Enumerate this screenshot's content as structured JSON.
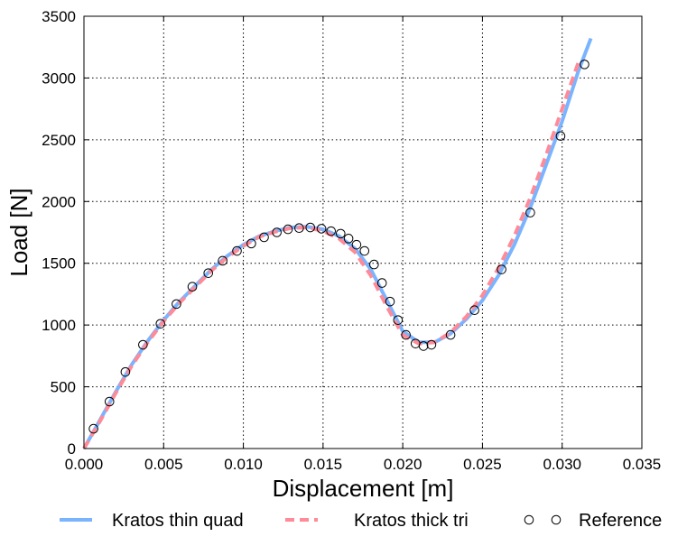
{
  "chart_data": {
    "type": "line",
    "title": "",
    "xlabel": "Displacement [m]",
    "ylabel": "Load [N]",
    "xlim": [
      0,
      0.035
    ],
    "ylim": [
      0,
      3500
    ],
    "grid": true,
    "legend_position": "bottom",
    "x_ticks": [
      0,
      0.005,
      0.01,
      0.015,
      0.02,
      0.025,
      0.03,
      0.035
    ],
    "x_tick_labels": [
      "0.000",
      "0.005",
      "0.010",
      "0.015",
      "0.020",
      "0.025",
      "0.030",
      "0.035"
    ],
    "y_ticks": [
      0,
      500,
      1000,
      1500,
      2000,
      2500,
      3000,
      3500
    ],
    "y_tick_labels": [
      "0",
      "500",
      "1000",
      "1500",
      "2000",
      "2500",
      "3000",
      "3500"
    ],
    "series": [
      {
        "name": "Kratos thin quad",
        "style": "solid",
        "color": "#7ab4ff",
        "x": [
          0,
          0.001,
          0.002,
          0.003,
          0.004,
          0.005,
          0.006,
          0.007,
          0.008,
          0.009,
          0.01,
          0.011,
          0.012,
          0.013,
          0.014,
          0.015,
          0.016,
          0.017,
          0.018,
          0.019,
          0.02,
          0.021,
          0.022,
          0.023,
          0.024,
          0.025,
          0.026,
          0.027,
          0.028,
          0.029,
          0.03,
          0.031,
          0.0318
        ],
        "y": [
          0,
          230,
          460,
          680,
          870,
          1040,
          1190,
          1320,
          1450,
          1560,
          1650,
          1720,
          1760,
          1790,
          1795,
          1775,
          1720,
          1620,
          1450,
          1200,
          950,
          860,
          860,
          930,
          1050,
          1200,
          1400,
          1650,
          1950,
          2300,
          2650,
          3050,
          3320
        ]
      },
      {
        "name": "Kratos thick tri",
        "style": "dashed",
        "color": "#ff8a98",
        "x": [
          0,
          0.001,
          0.002,
          0.003,
          0.004,
          0.005,
          0.006,
          0.007,
          0.008,
          0.009,
          0.01,
          0.011,
          0.012,
          0.013,
          0.014,
          0.015,
          0.016,
          0.017,
          0.018,
          0.019,
          0.02,
          0.021,
          0.022,
          0.023,
          0.024,
          0.025,
          0.026,
          0.027,
          0.028,
          0.029,
          0.03,
          0.031
        ],
        "y": [
          0,
          220,
          450,
          670,
          860,
          1030,
          1180,
          1310,
          1440,
          1550,
          1640,
          1715,
          1755,
          1785,
          1790,
          1760,
          1700,
          1590,
          1400,
          1150,
          920,
          850,
          860,
          940,
          1070,
          1240,
          1460,
          1720,
          2030,
          2380,
          2750,
          3120
        ]
      },
      {
        "name": "Reference",
        "style": "markers",
        "color": "#000000",
        "x": [
          0.0006,
          0.0016,
          0.0026,
          0.0037,
          0.0048,
          0.0058,
          0.0068,
          0.0078,
          0.0087,
          0.0096,
          0.0105,
          0.0113,
          0.0121,
          0.0128,
          0.0135,
          0.0142,
          0.0149,
          0.0155,
          0.0161,
          0.0166,
          0.0171,
          0.0176,
          0.0182,
          0.0187,
          0.0192,
          0.0197,
          0.0202,
          0.0208,
          0.0213,
          0.0218,
          0.023,
          0.0245,
          0.0262,
          0.028,
          0.0299,
          0.0314
        ],
        "y": [
          160,
          380,
          620,
          840,
          1010,
          1170,
          1310,
          1420,
          1520,
          1600,
          1660,
          1710,
          1750,
          1775,
          1785,
          1790,
          1780,
          1760,
          1740,
          1700,
          1650,
          1600,
          1490,
          1340,
          1190,
          1040,
          920,
          850,
          830,
          840,
          920,
          1120,
          1450,
          1910,
          2530,
          3110
        ]
      }
    ]
  }
}
